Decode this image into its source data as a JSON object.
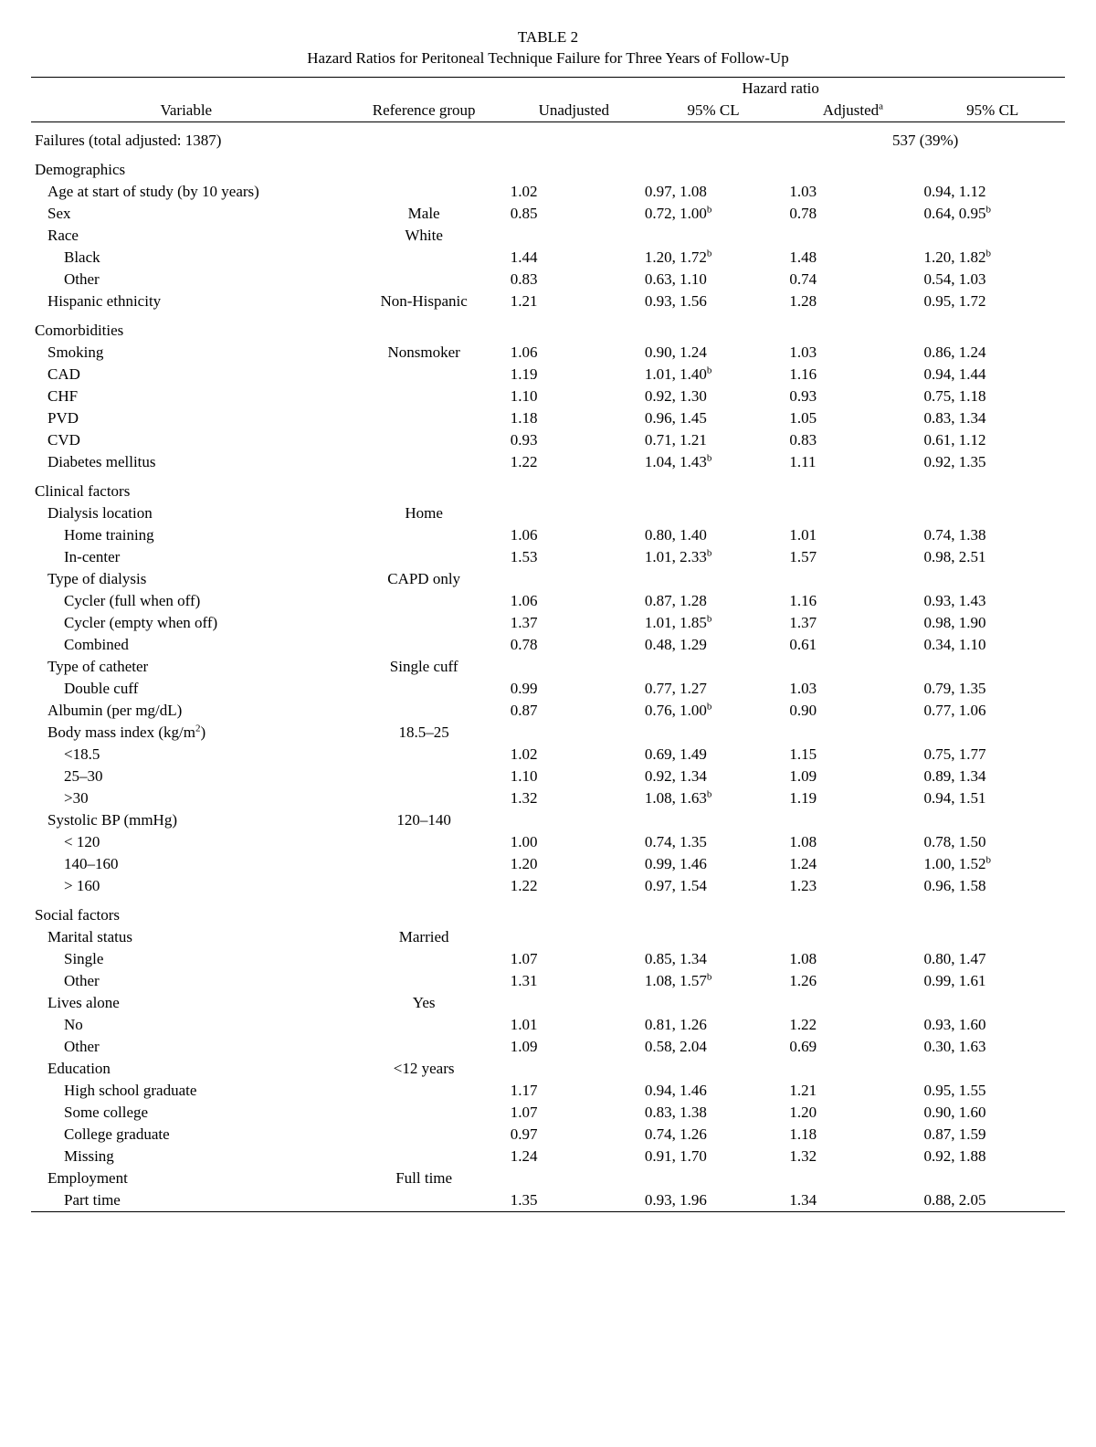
{
  "title_l1": "TABLE 2",
  "title_l2": "Hazard Ratios for Peritoneal Technique Failure for Three Years of Follow-Up",
  "h_variable": "Variable",
  "h_ref": "Reference group",
  "h_hr": "Hazard ratio",
  "h_unadj": "Unadjusted",
  "h_cl1": "95% CL",
  "h_adj": "Adjusted",
  "h_adj_sup": "a",
  "h_cl2": "95% CL",
  "failures_label": "Failures (total adjusted: 1387)",
  "failures_val": "537 (39%)",
  "sec_demo": "Demographics",
  "age_l": "Age at start of study (by 10 years)",
  "age_u": "1.02",
  "age_c1": "0.97, 1.08",
  "age_a": "1.03",
  "age_c2": "0.94, 1.12",
  "sex_l": "Sex",
  "sex_ref": "Male",
  "sex_u": "0.85",
  "sex_c1": "0.72, 1.00",
  "sex_c1_sup": "b",
  "sex_a": "0.78",
  "sex_c2": "0.64, 0.95",
  "sex_c2_sup": "b",
  "race_l": "Race",
  "race_ref": "White",
  "black_l": "Black",
  "black_u": "1.44",
  "black_c1": "1.20, 1.72",
  "black_c1_sup": "b",
  "black_a": "1.48",
  "black_c2": "1.20, 1.82",
  "black_c2_sup": "b",
  "other_l": "Other",
  "other_u": "0.83",
  "other_c1": "0.63, 1.10",
  "other_a": "0.74",
  "other_c2": "0.54, 1.03",
  "hisp_l": "Hispanic ethnicity",
  "hisp_ref": "Non-Hispanic",
  "hisp_u": "1.21",
  "hisp_c1": "0.93, 1.56",
  "hisp_a": "1.28",
  "hisp_c2": "0.95, 1.72",
  "sec_comorb": "Comorbidities",
  "smk_l": "Smoking",
  "smk_ref": "Nonsmoker",
  "smk_u": "1.06",
  "smk_c1": "0.90, 1.24",
  "smk_a": "1.03",
  "smk_c2": "0.86, 1.24",
  "cad_l": "CAD",
  "cad_u": "1.19",
  "cad_c1": "1.01, 1.40",
  "cad_c1_sup": "b",
  "cad_a": "1.16",
  "cad_c2": "0.94, 1.44",
  "chf_l": "CHF",
  "chf_u": "1.10",
  "chf_c1": "0.92, 1.30",
  "chf_a": "0.93",
  "chf_c2": "0.75, 1.18",
  "pvd_l": "PVD",
  "pvd_u": "1.18",
  "pvd_c1": "0.96, 1.45",
  "pvd_a": "1.05",
  "pvd_c2": "0.83, 1.34",
  "cvd_l": "CVD",
  "cvd_u": "0.93",
  "cvd_c1": "0.71, 1.21",
  "cvd_a": "0.83",
  "cvd_c2": "0.61, 1.12",
  "dm_l": "Diabetes mellitus",
  "dm_u": "1.22",
  "dm_c1": "1.04, 1.43",
  "dm_c1_sup": "b",
  "dm_a": "1.11",
  "dm_c2": "0.92, 1.35",
  "sec_clin": "Clinical factors",
  "dloc_l": "Dialysis location",
  "dloc_ref": "Home",
  "ht_l": "Home training",
  "ht_u": "1.06",
  "ht_c1": "0.80, 1.40",
  "ht_a": "1.01",
  "ht_c2": "0.74, 1.38",
  "ic_l": "In-center",
  "ic_u": "1.53",
  "ic_c1": "1.01, 2.33",
  "ic_c1_sup": "b",
  "ic_a": "1.57",
  "ic_c2": "0.98, 2.51",
  "tod_l": "Type of dialysis",
  "tod_ref": "CAPD only",
  "cf_l": "Cycler (full when off)",
  "cf_u": "1.06",
  "cf_c1": "0.87, 1.28",
  "cf_a": "1.16",
  "cf_c2": "0.93, 1.43",
  "ce_l": "Cycler (empty when off)",
  "ce_u": "1.37",
  "ce_c1": "1.01, 1.85",
  "ce_c1_sup": "b",
  "ce_a": "1.37",
  "ce_c2": "0.98, 1.90",
  "cb_l": "Combined",
  "cb_u": "0.78",
  "cb_c1": "0.48, 1.29",
  "cb_a": "0.61",
  "cb_c2": "0.34, 1.10",
  "toc_l": "Type of catheter",
  "toc_ref": "Single cuff",
  "dc_l": "Double cuff",
  "dc_u": "0.99",
  "dc_c1": "0.77, 1.27",
  "dc_a": "1.03",
  "dc_c2": "0.79, 1.35",
  "alb_l": "Albumin (per mg/dL)",
  "alb_u": "0.87",
  "alb_c1": "0.76, 1.00",
  "alb_c1_sup": "b",
  "alb_a": "0.90",
  "alb_c2": "0.77, 1.06",
  "bmi_l_pre": "Body mass index (kg/m",
  "bmi_l_sup": "2",
  "bmi_l_post": ")",
  "bmi_ref": "18.5–25",
  "b1_l": "<18.5",
  "b1_u": "1.02",
  "b1_c1": "0.69, 1.49",
  "b1_a": "1.15",
  "b1_c2": "0.75, 1.77",
  "b2_l": "25–30",
  "b2_u": "1.10",
  "b2_c1": "0.92, 1.34",
  "b2_a": "1.09",
  "b2_c2": "0.89, 1.34",
  "b3_l": ">30",
  "b3_u": "1.32",
  "b3_c1": "1.08, 1.63",
  "b3_c1_sup": "b",
  "b3_a": "1.19",
  "b3_c2": "0.94, 1.51",
  "sbp_l": "Systolic BP (mmHg)",
  "sbp_ref": "120–140",
  "s1_l": "< 120",
  "s1_u": "1.00",
  "s1_c1": "0.74, 1.35",
  "s1_a": "1.08",
  "s1_c2": "0.78, 1.50",
  "s2_l": "140–160",
  "s2_u": "1.20",
  "s2_c1": "0.99, 1.46",
  "s2_a": "1.24",
  "s2_c2": "1.00, 1.52",
  "s2_c2_sup": "b",
  "s3_l": "> 160",
  "s3_u": "1.22",
  "s3_c1": "0.97, 1.54",
  "s3_a": "1.23",
  "s3_c2": "0.96, 1.58",
  "sec_soc": "Social factors",
  "ms_l": "Marital status",
  "ms_ref": "Married",
  "m1_l": "Single",
  "m1_u": "1.07",
  "m1_c1": "0.85, 1.34",
  "m1_a": "1.08",
  "m1_c2": "0.80, 1.47",
  "m2_l": "Other",
  "m2_u": "1.31",
  "m2_c1": "1.08, 1.57",
  "m2_c1_sup": "b",
  "m2_a": "1.26",
  "m2_c2": "0.99, 1.61",
  "la_l": "Lives alone",
  "la_ref": "Yes",
  "l1_l": "No",
  "l1_u": "1.01",
  "l1_c1": "0.81, 1.26",
  "l1_a": "1.22",
  "l1_c2": "0.93, 1.60",
  "l2_l": "Other",
  "l2_u": "1.09",
  "l2_c1": "0.58, 2.04",
  "l2_a": "0.69",
  "l2_c2": "0.30, 1.63",
  "ed_l": "Education",
  "ed_ref": "<12 years",
  "e1_l": "High school graduate",
  "e1_u": "1.17",
  "e1_c1": "0.94, 1.46",
  "e1_a": "1.21",
  "e1_c2": "0.95, 1.55",
  "e2_l": "Some college",
  "e2_u": "1.07",
  "e2_c1": "0.83, 1.38",
  "e2_a": "1.20",
  "e2_c2": "0.90, 1.60",
  "e3_l": "College graduate",
  "e3_u": "0.97",
  "e3_c1": "0.74, 1.26",
  "e3_a": "1.18",
  "e3_c2": "0.87, 1.59",
  "e4_l": "Missing",
  "e4_u": "1.24",
  "e4_c1": "0.91, 1.70",
  "e4_a": "1.32",
  "e4_c2": "0.92, 1.88",
  "emp_l": "Employment",
  "emp_ref": "Full time",
  "p1_l": "Part time",
  "p1_u": "1.35",
  "p1_c1": "0.93, 1.96",
  "p1_a": "1.34",
  "p1_c2": "0.88, 2.05"
}
